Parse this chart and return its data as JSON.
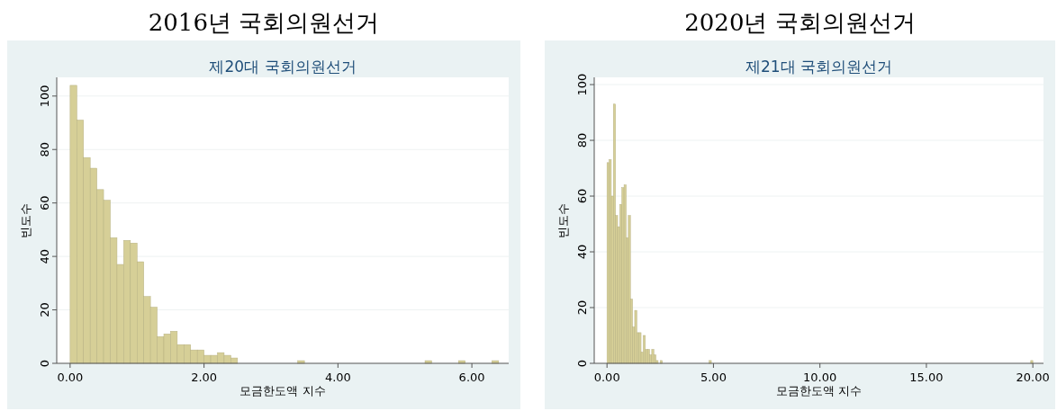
{
  "chart_data": [
    {
      "type": "histogram",
      "title": "2016년 국회의원선거",
      "subtitle": "제20대 국회의원선거",
      "xlabel": "모금한도액 지수",
      "ylabel": "빈도수",
      "color": "#d6cf97",
      "grid": "y",
      "bins": [
        0,
        0.1,
        0.2,
        0.3,
        0.4,
        0.5,
        0.6,
        0.7,
        0.8,
        0.9,
        1.0,
        1.1,
        1.2,
        1.3,
        1.4,
        1.5,
        1.6,
        1.7,
        1.8,
        1.9,
        2.0,
        2.1,
        2.2,
        2.3,
        2.4,
        2.5,
        3.4,
        3.5,
        5.3,
        5.4,
        5.8,
        5.9,
        6.3,
        6.4
      ],
      "values": [
        104,
        91,
        77,
        73,
        65,
        61,
        47,
        37,
        46,
        45,
        38,
        25,
        21,
        10,
        11,
        12,
        7,
        7,
        5,
        5,
        3,
        3,
        4,
        3,
        2,
        0,
        1,
        0,
        1,
        0,
        1,
        0,
        1
      ],
      "xlim": [
        -0.2,
        6.55
      ],
      "ylim": [
        0,
        107
      ],
      "xticks": [
        {
          "value": 0,
          "label": "0.00"
        },
        {
          "value": 2,
          "label": "2.00"
        },
        {
          "value": 4,
          "label": "4.00"
        },
        {
          "value": 6,
          "label": "6.00"
        }
      ],
      "yticks": [
        0,
        20,
        40,
        60,
        80,
        100
      ]
    },
    {
      "type": "histogram",
      "title": "2020년 국회의원선거",
      "subtitle": "제21대 국회의원선거",
      "xlabel": "모금한도액 지수",
      "ylabel": "빈도수",
      "color": "#d6cf97",
      "grid": "y",
      "bins": [
        0,
        0.1,
        0.2,
        0.3,
        0.4,
        0.5,
        0.6,
        0.7,
        0.8,
        0.9,
        1.0,
        1.1,
        1.2,
        1.3,
        1.4,
        1.5,
        1.6,
        1.7,
        1.8,
        1.9,
        2.0,
        2.1,
        2.2,
        2.3,
        2.4,
        2.5,
        2.6,
        4.8,
        4.9,
        19.9,
        20.0
      ],
      "values": [
        72,
        73,
        60,
        93,
        53,
        49,
        57,
        63,
        64,
        45,
        53,
        23,
        13,
        19,
        11,
        11,
        4,
        10,
        5,
        5,
        3,
        5,
        3,
        1,
        0,
        1,
        0,
        1,
        0,
        1
      ],
      "xlim": [
        -0.6,
        20.5
      ],
      "ylim": [
        0,
        102.6
      ],
      "xticks": [
        {
          "value": 0,
          "label": "0.00"
        },
        {
          "value": 5,
          "label": "5.00"
        },
        {
          "value": 10,
          "label": "10.00"
        },
        {
          "value": 15,
          "label": "15.00"
        },
        {
          "value": 20,
          "label": "20.00"
        }
      ],
      "yticks": [
        0,
        20,
        40,
        60,
        80,
        100
      ]
    }
  ]
}
